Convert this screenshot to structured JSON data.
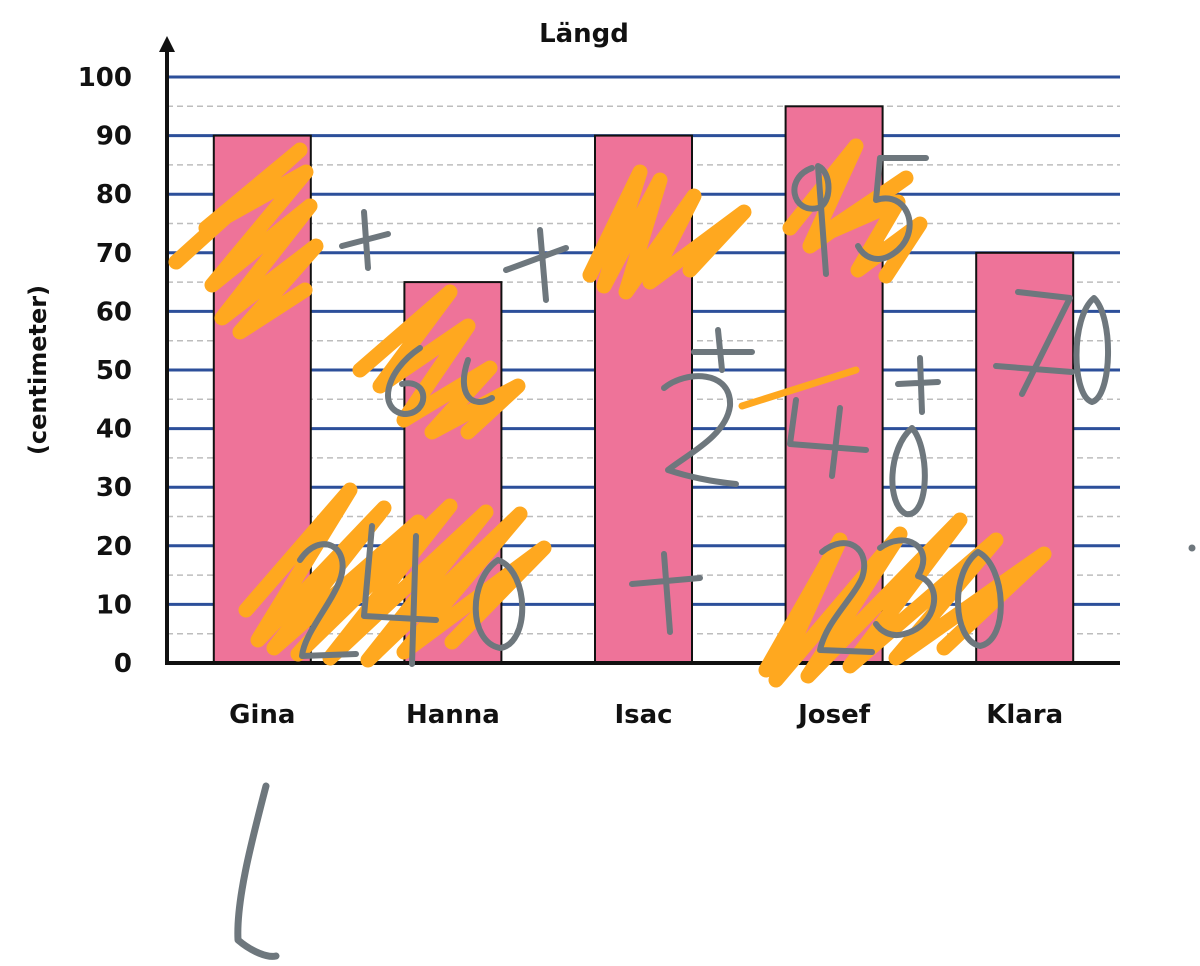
{
  "chart_data": {
    "type": "bar",
    "title": "Längd",
    "xlabel": "",
    "ylabel": "(centimeter)",
    "categories": [
      "Gina",
      "Hanna",
      "Isac",
      "Josef",
      "Klara"
    ],
    "values": [
      90,
      65,
      90,
      95,
      70
    ],
    "ylim": [
      0,
      100
    ],
    "yticks": [
      0,
      10,
      20,
      30,
      40,
      50,
      60,
      70,
      80,
      90,
      100
    ],
    "major_grid": true,
    "minor_grid": true,
    "legend": "none"
  },
  "colors": {
    "bar_fill": "#ee7399",
    "bar_stroke": "#111111",
    "major_gridline": "#2c4f9a",
    "minor_gridline": "#bdbdbd",
    "axis": "#111111",
    "orange_ink": "#ffa81f",
    "gray_ink": "#6e777d"
  }
}
